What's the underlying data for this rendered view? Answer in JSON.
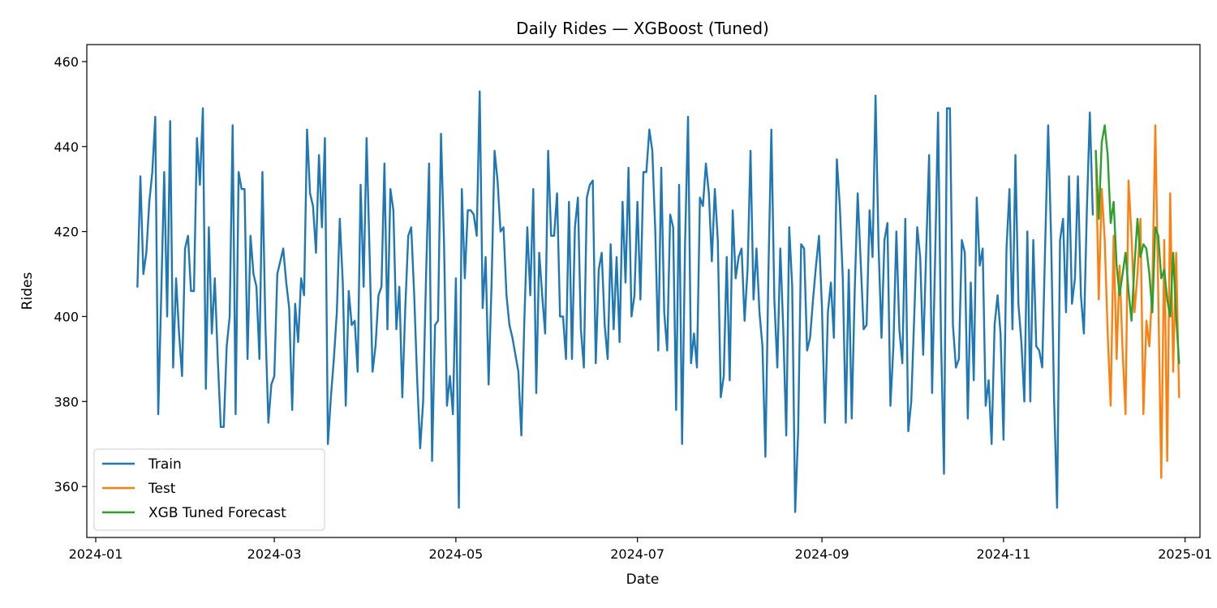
{
  "chart_data": {
    "type": "line",
    "title": "Daily Rides — XGBoost (Tuned)",
    "xlabel": "Date",
    "ylabel": "Rides",
    "x_axis": {
      "kind": "date",
      "range": [
        "2023-12-29",
        "2025-01-06"
      ],
      "ticks": [
        {
          "date": "2024-01-01",
          "label": "2024-01"
        },
        {
          "date": "2024-03-01",
          "label": "2024-03"
        },
        {
          "date": "2024-05-01",
          "label": "2024-05"
        },
        {
          "date": "2024-07-01",
          "label": "2024-07"
        },
        {
          "date": "2024-09-01",
          "label": "2024-09"
        },
        {
          "date": "2024-11-01",
          "label": "2024-11"
        },
        {
          "date": "2025-01-01",
          "label": "2025-01"
        }
      ]
    },
    "y_axis": {
      "range": [
        348,
        464
      ],
      "ticks": [
        360,
        380,
        400,
        420,
        440,
        460
      ]
    },
    "grid": false,
    "legend_position": "lower-left",
    "series": [
      {
        "name": "Train",
        "color": "#1f77b4",
        "start_date": "2024-01-15",
        "values": [
          407,
          433,
          410,
          415,
          427,
          434,
          447,
          377,
          405,
          434,
          400,
          446,
          388,
          409,
          396,
          386,
          416,
          419,
          406,
          406,
          442,
          431,
          449,
          383,
          421,
          396,
          409,
          390,
          374,
          374,
          393,
          400,
          445,
          377,
          434,
          430,
          430,
          390,
          419,
          410,
          407,
          390,
          434,
          398,
          375,
          384,
          386,
          410,
          413,
          416,
          408,
          402,
          378,
          403,
          394,
          409,
          405,
          444,
          429,
          426,
          415,
          438,
          421,
          442,
          370,
          381,
          390,
          401,
          423,
          408,
          379,
          406,
          398,
          399,
          387,
          431,
          407,
          442,
          415,
          387,
          393,
          405,
          407,
          436,
          397,
          430,
          425,
          397,
          407,
          381,
          402,
          419,
          421,
          405,
          385,
          369,
          380,
          410,
          436,
          366,
          398,
          399,
          443,
          418,
          379,
          386,
          377,
          409,
          355,
          430,
          409,
          425,
          425,
          424,
          419,
          453,
          402,
          414,
          384,
          408,
          439,
          432,
          420,
          421,
          405,
          398,
          395,
          391,
          387,
          372,
          399,
          421,
          405,
          430,
          382,
          415,
          405,
          396,
          439,
          419,
          419,
          429,
          400,
          400,
          390,
          427,
          390,
          421,
          428,
          397,
          388,
          428,
          431,
          432,
          389,
          411,
          415,
          398,
          390,
          417,
          397,
          414,
          394,
          427,
          408,
          435,
          400,
          405,
          427,
          404,
          434,
          434,
          444,
          439,
          420,
          392,
          435,
          401,
          392,
          424,
          421,
          378,
          431,
          370,
          417,
          447,
          389,
          396,
          388,
          428,
          426,
          436,
          429,
          413,
          430,
          418,
          381,
          386,
          414,
          385,
          425,
          409,
          414,
          416,
          399,
          411,
          439,
          404,
          416,
          401,
          393,
          367,
          410,
          444,
          404,
          388,
          416,
          397,
          372,
          421,
          407,
          354,
          373,
          417,
          416,
          392,
          395,
          404,
          412,
          419,
          402,
          375,
          401,
          408,
          395,
          437,
          426,
          409,
          375,
          411,
          376,
          406,
          429,
          413,
          397,
          398,
          425,
          414,
          452,
          417,
          395,
          418,
          422,
          379,
          393,
          420,
          397,
          389,
          423,
          373,
          380,
          400,
          421,
          414,
          391,
          415,
          438,
          382,
          413,
          448,
          395,
          363,
          449,
          449,
          398,
          388,
          390,
          418,
          415,
          376,
          408,
          385,
          428,
          412,
          416,
          379,
          385,
          370,
          398,
          405,
          396,
          371,
          416,
          430,
          397,
          438,
          403,
          394,
          380,
          420,
          380,
          418,
          393,
          392,
          388,
          417,
          445,
          418,
          380,
          355,
          418,
          423,
          401,
          433,
          403,
          409,
          433,
          405,
          396,
          425,
          448,
          424
        ]
      },
      {
        "name": "Test",
        "color": "#ff7f0e",
        "start_date": "2024-12-02",
        "values": [
          439,
          404,
          430,
          418,
          396,
          379,
          419,
          390,
          412,
          392,
          377,
          432,
          419,
          401,
          410,
          423,
          377,
          399,
          393,
          407,
          445,
          405,
          362,
          418,
          366,
          429,
          387,
          415,
          381
        ]
      },
      {
        "name": "XGB Tuned Forecast",
        "color": "#2ca02c",
        "start_date": "2024-12-02",
        "values": [
          439,
          423,
          441,
          445,
          438,
          422,
          427,
          412,
          405,
          410,
          415,
          406,
          399,
          412,
          423,
          414,
          417,
          416,
          410,
          401,
          421,
          419,
          409,
          411,
          404,
          400,
          415,
          400,
          389
        ]
      }
    ]
  }
}
